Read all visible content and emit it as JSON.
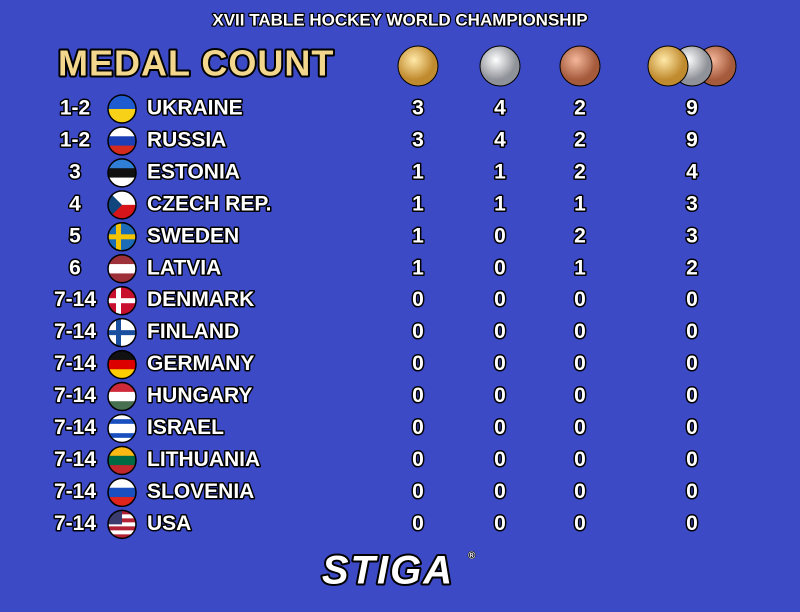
{
  "header": {
    "event": "XVII TABLE HOCKEY WORLD CHAMPIONSHIP",
    "title": "MEDAL COUNT"
  },
  "table": {
    "rows": [
      {
        "rank": "1-2",
        "country": "UKRAINE",
        "gold": 3,
        "silver": 4,
        "bronze": 2,
        "total": 9
      },
      {
        "rank": "1-2",
        "country": "RUSSIA",
        "gold": 3,
        "silver": 4,
        "bronze": 2,
        "total": 9
      },
      {
        "rank": "3",
        "country": "ESTONIA",
        "gold": 1,
        "silver": 1,
        "bronze": 2,
        "total": 4
      },
      {
        "rank": "4",
        "country": "CZECH REP.",
        "gold": 1,
        "silver": 1,
        "bronze": 1,
        "total": 3
      },
      {
        "rank": "5",
        "country": "SWEDEN",
        "gold": 1,
        "silver": 0,
        "bronze": 2,
        "total": 3
      },
      {
        "rank": "6",
        "country": "LATVIA",
        "gold": 1,
        "silver": 0,
        "bronze": 1,
        "total": 2
      },
      {
        "rank": "7-14",
        "country": "DENMARK",
        "gold": 0,
        "silver": 0,
        "bronze": 0,
        "total": 0
      },
      {
        "rank": "7-14",
        "country": "FINLAND",
        "gold": 0,
        "silver": 0,
        "bronze": 0,
        "total": 0
      },
      {
        "rank": "7-14",
        "country": "GERMANY",
        "gold": 0,
        "silver": 0,
        "bronze": 0,
        "total": 0
      },
      {
        "rank": "7-14",
        "country": "HUNGARY",
        "gold": 0,
        "silver": 0,
        "bronze": 0,
        "total": 0
      },
      {
        "rank": "7-14",
        "country": "ISRAEL",
        "gold": 0,
        "silver": 0,
        "bronze": 0,
        "total": 0
      },
      {
        "rank": "7-14",
        "country": "LITHUANIA",
        "gold": 0,
        "silver": 0,
        "bronze": 0,
        "total": 0
      },
      {
        "rank": "7-14",
        "country": "SLOVENIA",
        "gold": 0,
        "silver": 0,
        "bronze": 0,
        "total": 0
      },
      {
        "rank": "7-14",
        "country": "USA",
        "gold": 0,
        "silver": 0,
        "bronze": 0,
        "total": 0
      }
    ]
  },
  "footer": {
    "logo": "STIGA"
  }
}
